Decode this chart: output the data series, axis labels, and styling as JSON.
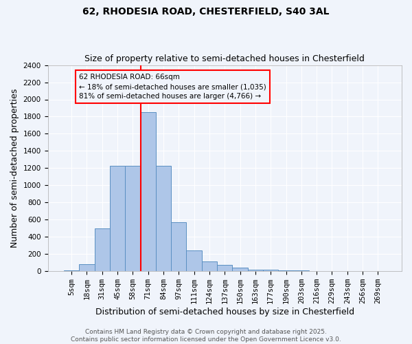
{
  "title_line1": "62, RHODESIA ROAD, CHESTERFIELD, S40 3AL",
  "title_line2": "Size of property relative to semi-detached houses in Chesterfield",
  "xlabel": "Distribution of semi-detached houses by size in Chesterfield",
  "ylabel": "Number of semi-detached properties",
  "categories": [
    "5sqm",
    "18sqm",
    "31sqm",
    "45sqm",
    "58sqm",
    "71sqm",
    "84sqm",
    "97sqm",
    "111sqm",
    "124sqm",
    "137sqm",
    "150sqm",
    "163sqm",
    "177sqm",
    "190sqm",
    "203sqm",
    "216sqm",
    "229sqm",
    "243sqm",
    "256sqm",
    "269sqm"
  ],
  "values": [
    10,
    80,
    500,
    1230,
    1230,
    1850,
    1230,
    570,
    240,
    115,
    70,
    45,
    15,
    15,
    10,
    10,
    5,
    2,
    1,
    1,
    0
  ],
  "bar_color": "#aec6e8",
  "bar_edge_color": "#5a8fc2",
  "vline_color": "red",
  "annotation_title": "62 RHODESIA ROAD: 66sqm",
  "annotation_line1": "← 18% of semi-detached houses are smaller (1,035)",
  "annotation_line2": "81% of semi-detached houses are larger (4,766) →",
  "annotation_box_color": "red",
  "ylim": [
    0,
    2400
  ],
  "yticks": [
    0,
    200,
    400,
    600,
    800,
    1000,
    1200,
    1400,
    1600,
    1800,
    2000,
    2200,
    2400
  ],
  "footer_line1": "Contains HM Land Registry data © Crown copyright and database right 2025.",
  "footer_line2": "Contains public sector information licensed under the Open Government Licence v3.0.",
  "background_color": "#f0f4fb",
  "grid_color": "#ffffff",
  "title_fontsize": 10,
  "subtitle_fontsize": 9,
  "axis_label_fontsize": 9,
  "tick_fontsize": 7.5,
  "footer_fontsize": 6.5,
  "vline_xindex": 4.5
}
